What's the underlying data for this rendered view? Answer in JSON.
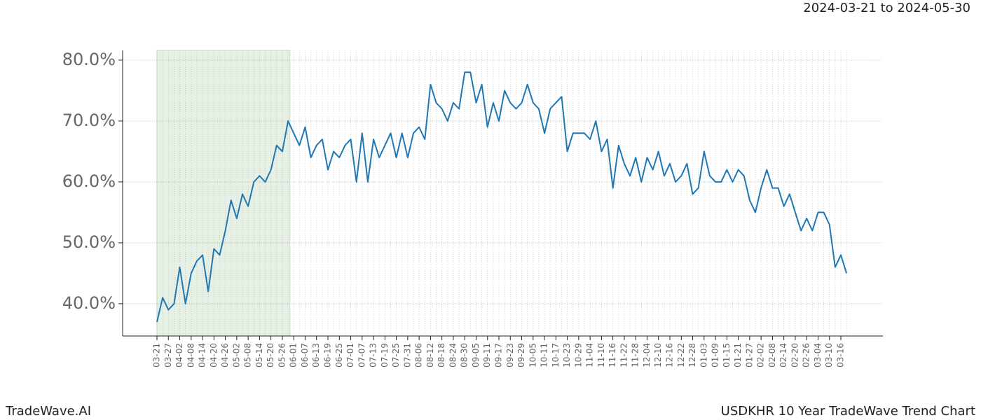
{
  "chart_data": {
    "type": "line",
    "subtitle": "2024-03-21 to 2024-05-30",
    "footer_left": "TradeWave.AI",
    "footer_right": "USDKHR 10 Year TradeWave Trend Chart",
    "categories": [
      "03-21",
      null,
      "03-27",
      null,
      "04-02",
      null,
      "04-08",
      null,
      "04-14",
      null,
      "04-20",
      null,
      "04-26",
      null,
      "05-02",
      null,
      "05-08",
      null,
      "05-14",
      null,
      "05-20",
      null,
      "05-26",
      null,
      "06-01",
      null,
      "06-07",
      null,
      "06-13",
      null,
      "06-19",
      null,
      "06-25",
      null,
      "07-01",
      null,
      "07-07",
      null,
      "07-13",
      null,
      "07-19",
      null,
      "07-25",
      null,
      "07-31",
      null,
      "08-06",
      null,
      "08-12",
      null,
      "08-18",
      null,
      "08-24",
      null,
      "08-30",
      null,
      "09-05",
      null,
      "09-11",
      null,
      "09-17",
      null,
      "09-23",
      null,
      "09-29",
      null,
      "10-05",
      null,
      "10-11",
      null,
      "10-17",
      null,
      "10-23",
      null,
      "10-29",
      null,
      "11-04",
      null,
      "11-10",
      null,
      "11-16",
      null,
      "11-22",
      null,
      "11-28",
      null,
      "12-04",
      null,
      "12-10",
      null,
      "12-16",
      null,
      "12-22",
      null,
      "12-28",
      null,
      "01-03",
      null,
      "01-09",
      null,
      "01-15",
      null,
      "01-21",
      null,
      "01-27",
      null,
      "02-02",
      null,
      "02-08",
      null,
      "02-14",
      null,
      "02-20",
      null,
      "02-26",
      null,
      "03-04",
      null,
      "03-10",
      null,
      "03-16",
      null
    ],
    "series": [
      {
        "name": "USDKHR",
        "color": "#1f77b4",
        "values": [
          37,
          41,
          39,
          40,
          46,
          40,
          45,
          47,
          48,
          42,
          49,
          48,
          52,
          57,
          54,
          58,
          56,
          60,
          61,
          60,
          62,
          66,
          65,
          70,
          68,
          66,
          69,
          64,
          66,
          67,
          62,
          65,
          64,
          66,
          67,
          60,
          68,
          60,
          67,
          64,
          66,
          68,
          64,
          68,
          64,
          68,
          69,
          67,
          76,
          73,
          72,
          70,
          73,
          72,
          78,
          78,
          73,
          76,
          69,
          73,
          70,
          75,
          73,
          72,
          73,
          76,
          73,
          72,
          68,
          72,
          73,
          74,
          65,
          68,
          68,
          68,
          67,
          70,
          65,
          67,
          59,
          66,
          63,
          61,
          64,
          60,
          64,
          62,
          65,
          61,
          63,
          60,
          61,
          63,
          58,
          59,
          65,
          61,
          60,
          60,
          62,
          60,
          62,
          61,
          57,
          55,
          59,
          62,
          59,
          59,
          56,
          58,
          55,
          52,
          54,
          52,
          55,
          55,
          53,
          46,
          48,
          45
        ]
      }
    ],
    "ylim": [
      34.7,
      81.6
    ],
    "yticks": [
      {
        "value": 40,
        "label": "40.0%"
      },
      {
        "value": 50,
        "label": "50.0%"
      },
      {
        "value": 60,
        "label": "60.0%"
      },
      {
        "value": 70,
        "label": "70.0%"
      },
      {
        "value": 80,
        "label": "80.0%"
      }
    ],
    "grid": true,
    "highlight_color": "#e6f0e4"
  }
}
